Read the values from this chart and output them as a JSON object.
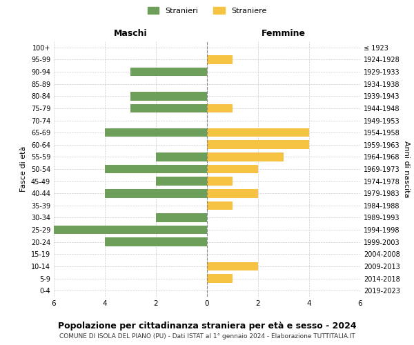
{
  "age_groups": [
    "100+",
    "95-99",
    "90-94",
    "85-89",
    "80-84",
    "75-79",
    "70-74",
    "65-69",
    "60-64",
    "55-59",
    "50-54",
    "45-49",
    "40-44",
    "35-39",
    "30-34",
    "25-29",
    "20-24",
    "15-19",
    "10-14",
    "5-9",
    "0-4"
  ],
  "birth_years": [
    "≤ 1923",
    "1924-1928",
    "1929-1933",
    "1934-1938",
    "1939-1943",
    "1944-1948",
    "1949-1953",
    "1954-1958",
    "1959-1963",
    "1964-1968",
    "1969-1973",
    "1974-1978",
    "1979-1983",
    "1984-1988",
    "1989-1993",
    "1994-1998",
    "1999-2003",
    "2004-2008",
    "2009-2013",
    "2014-2018",
    "2019-2023"
  ],
  "maschi": [
    0,
    0,
    3,
    0,
    3,
    3,
    0,
    4,
    0,
    2,
    4,
    2,
    4,
    0,
    2,
    6,
    4,
    0,
    0,
    0,
    0
  ],
  "femmine": [
    0,
    1,
    0,
    0,
    0,
    1,
    0,
    4,
    4,
    3,
    2,
    1,
    2,
    1,
    0,
    0,
    0,
    0,
    2,
    1,
    0
  ],
  "maschi_color": "#6d9e5a",
  "femmine_color": "#f5c242",
  "title": "Popolazione per cittadinanza straniera per età e sesso - 2024",
  "subtitle": "COMUNE DI ISOLA DEL PIANO (PU) - Dati ISTAT al 1° gennaio 2024 - Elaborazione TUTTITALIA.IT",
  "xlabel_left": "Maschi",
  "xlabel_right": "Femmine",
  "ylabel_left": "Fasce di età",
  "ylabel_right": "Anni di nascita",
  "legend_stranieri": "Stranieri",
  "legend_straniere": "Straniere",
  "xlim": 6,
  "background_color": "#ffffff",
  "grid_color": "#cccccc",
  "bar_height": 0.72
}
